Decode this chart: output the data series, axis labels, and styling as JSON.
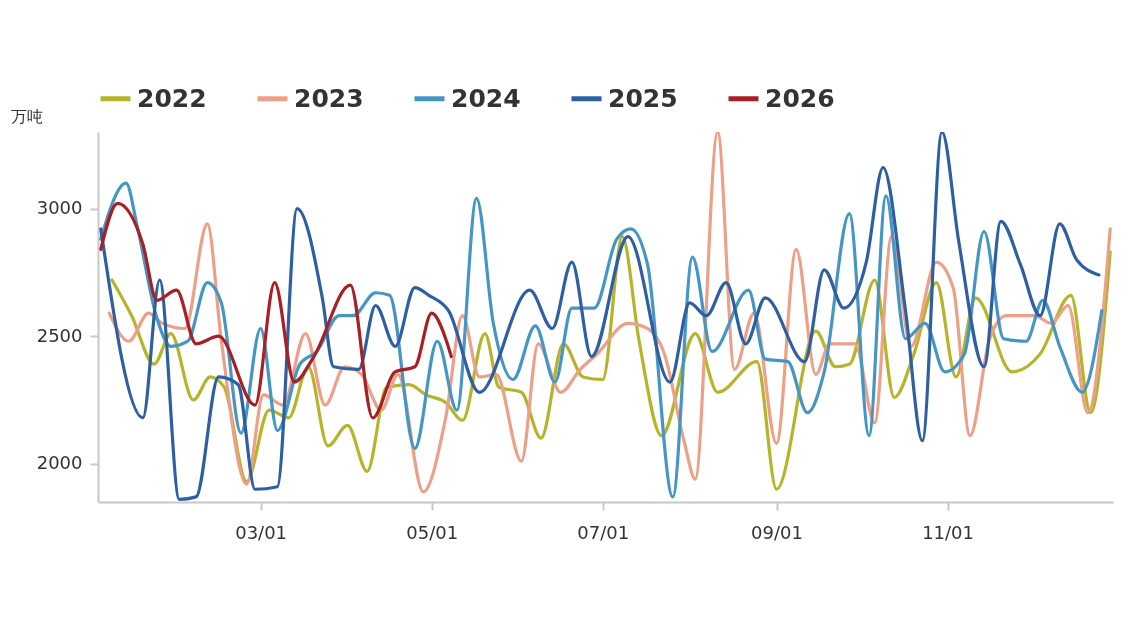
{
  "chart_data": {
    "type": "line",
    "ylabel": "万吨",
    "xlim": [
      "--01-02",
      "--12-30"
    ],
    "xticks": [
      {
        "value": "--03-01",
        "label": "03/01"
      },
      {
        "value": "--05-01",
        "label": "05/01"
      },
      {
        "value": "--07-01",
        "label": "07/01"
      },
      {
        "value": "--09-01",
        "label": "09/01"
      },
      {
        "value": "--11-01",
        "label": "11/01"
      }
    ],
    "ylim": [
      1850,
      3300
    ],
    "yticks": [
      2000,
      2500,
      3000
    ],
    "grid": false,
    "legend": "top",
    "series": [
      {
        "name": "2022",
        "color": "#b5b42a",
        "x": [
          "--01-07",
          "--01-14",
          "--01-22",
          "--01-28",
          "--02-05",
          "--02-11",
          "--02-16",
          "--02-24",
          "--03-04",
          "--03-11",
          "--03-18",
          "--03-25",
          "--04-01",
          "--04-08",
          "--04-15",
          "--04-23",
          "--04-29",
          "--05-06",
          "--05-12",
          "--05-20",
          "--05-25",
          "--06-02",
          "--06-09",
          "--06-17",
          "--06-24",
          "--07-01",
          "--07-08",
          "--07-14",
          "--07-22",
          "--08-03",
          "--08-11",
          "--08-25",
          "--09-01",
          "--09-15",
          "--09-22",
          "--09-27",
          "--10-06",
          "--10-13",
          "--10-20",
          "--10-28",
          "--11-04",
          "--11-11",
          "--11-24",
          "--12-04",
          "--12-15",
          "--12-22",
          "--12-29"
        ],
        "values": [
          2720,
          2580,
          2390,
          2510,
          2250,
          2340,
          2300,
          1930,
          2210,
          2180,
          2380,
          2070,
          2150,
          1970,
          2300,
          2310,
          2270,
          2240,
          2170,
          2510,
          2300,
          2280,
          2100,
          2470,
          2340,
          2330,
          2890,
          2480,
          2110,
          2510,
          2280,
          2400,
          1900,
          2520,
          2380,
          2390,
          2720,
          2260,
          2430,
          2710,
          2340,
          2650,
          2360,
          2430,
          2660,
          2200,
          2830
        ]
      },
      {
        "name": "2023",
        "color": "#eda088",
        "x": [
          "--01-06",
          "--01-13",
          "--01-20",
          "--01-25",
          "--02-02",
          "--02-10",
          "--02-15",
          "--02-24",
          "--03-02",
          "--03-09",
          "--03-17",
          "--03-24",
          "--03-31",
          "--04-06",
          "--04-13",
          "--04-19",
          "--04-28",
          "--05-06",
          "--05-12",
          "--05-18",
          "--05-24",
          "--06-02",
          "--06-08",
          "--06-16",
          "--06-23",
          "--06-29",
          "--07-10",
          "--07-17",
          "--07-23",
          "--07-30",
          "--08-03",
          "--08-11",
          "--08-17",
          "--08-24",
          "--09-01",
          "--09-08",
          "--09-15",
          "--09-20",
          "--09-29",
          "--10-06",
          "--10-12",
          "--10-19",
          "--10-28",
          "--11-03",
          "--11-09",
          "--11-16",
          "--11-22",
          "--12-02",
          "--12-08",
          "--12-14",
          "--12-21",
          "--12-29"
        ],
        "values": [
          2590,
          2480,
          2590,
          2550,
          2530,
          2940,
          2480,
          1920,
          2270,
          2230,
          2510,
          2230,
          2380,
          2350,
          2210,
          2350,
          1890,
          2180,
          2580,
          2340,
          2350,
          2010,
          2470,
          2280,
          2370,
          2430,
          2550,
          2530,
          2430,
          2090,
          1940,
          3300,
          2370,
          2590,
          2080,
          2840,
          2350,
          2470,
          2470,
          2160,
          2890,
          2460,
          2790,
          2690,
          2110,
          2490,
          2580,
          2580,
          2550,
          2620,
          2200,
          2920
        ]
      },
      {
        "name": "2024",
        "color": "#4596c4",
        "x": [
          "--01-03",
          "--01-12",
          "--01-16",
          "--01-23",
          "--01-28",
          "--02-03",
          "--02-10",
          "--02-15",
          "--02-22",
          "--03-01",
          "--03-07",
          "--03-15",
          "--03-21",
          "--03-29",
          "--04-03",
          "--04-11",
          "--04-16",
          "--04-25",
          "--05-03",
          "--05-10",
          "--05-17",
          "--05-23",
          "--05-30",
          "--06-07",
          "--06-14",
          "--06-20",
          "--06-28",
          "--07-06",
          "--07-11",
          "--07-17",
          "--07-26",
          "--08-02",
          "--08-09",
          "--08-22",
          "--08-28",
          "--09-05",
          "--09-12",
          "--09-18",
          "--09-27",
          "--10-04",
          "--10-10",
          "--10-17",
          "--10-24",
          "--10-31",
          "--11-07",
          "--11-14",
          "--11-21",
          "--11-29",
          "--12-05",
          "--12-11",
          "--12-19",
          "--12-26"
        ],
        "values": [
          2880,
          3100,
          2930,
          2570,
          2460,
          2480,
          2710,
          2630,
          2120,
          2530,
          2130,
          2390,
          2440,
          2580,
          2580,
          2670,
          2660,
          2060,
          2480,
          2210,
          3040,
          2550,
          2330,
          2540,
          2320,
          2610,
          2610,
          2880,
          2920,
          2780,
          1870,
          2810,
          2440,
          2680,
          2410,
          2400,
          2200,
          2360,
          2980,
          2110,
          3050,
          2490,
          2550,
          2360,
          2430,
          2910,
          2490,
          2480,
          2640,
          2460,
          2280,
          2600
        ]
      },
      {
        "name": "2025",
        "color": "#2e5fa3",
        "x": [
          "--01-03",
          "--01-18",
          "--01-24",
          "--01-31",
          "--02-06",
          "--02-14",
          "--02-21",
          "--02-27",
          "--03-07",
          "--03-14",
          "--03-23",
          "--03-27",
          "--04-05",
          "--04-11",
          "--04-18",
          "--04-25",
          "--04-30",
          "--05-07",
          "--05-18",
          "--06-05",
          "--06-13",
          "--06-20",
          "--06-27",
          "--07-10",
          "--07-25",
          "--08-01",
          "--08-07",
          "--08-14",
          "--08-21",
          "--08-28",
          "--09-11",
          "--09-18",
          "--09-25",
          "--10-03",
          "--10-09",
          "--10-17",
          "--10-23",
          "--10-30",
          "--11-05",
          "--11-14",
          "--11-20",
          "--11-27",
          "--12-04",
          "--12-11",
          "--12-17",
          "--12-25"
        ],
        "values": [
          2920,
          2180,
          2720,
          1860,
          1870,
          2340,
          2310,
          1900,
          1910,
          3000,
          2650,
          2380,
          2370,
          2620,
          2460,
          2690,
          2660,
          2600,
          2280,
          2680,
          2530,
          2790,
          2420,
          2890,
          2320,
          2630,
          2580,
          2710,
          2470,
          2650,
          2400,
          2760,
          2610,
          2790,
          3160,
          2600,
          2090,
          3300,
          2870,
          2380,
          2950,
          2780,
          2580,
          2940,
          2800,
          2740
        ]
      },
      {
        "name": "2026",
        "color": "#a81f24",
        "x": [
          "--01-03",
          "--01-09",
          "--01-18",
          "--01-23",
          "--01-30",
          "--02-06",
          "--02-14",
          "--02-27",
          "--03-06",
          "--03-13",
          "--03-20",
          "--04-02",
          "--04-10",
          "--04-18",
          "--04-25",
          "--05-01",
          "--05-06",
          "--05-08"
        ],
        "values": [
          2840,
          3020,
          2860,
          2640,
          2680,
          2470,
          2500,
          2230,
          2710,
          2320,
          2420,
          2700,
          2180,
          2360,
          2380,
          2590,
          2490,
          2420
        ]
      }
    ]
  }
}
